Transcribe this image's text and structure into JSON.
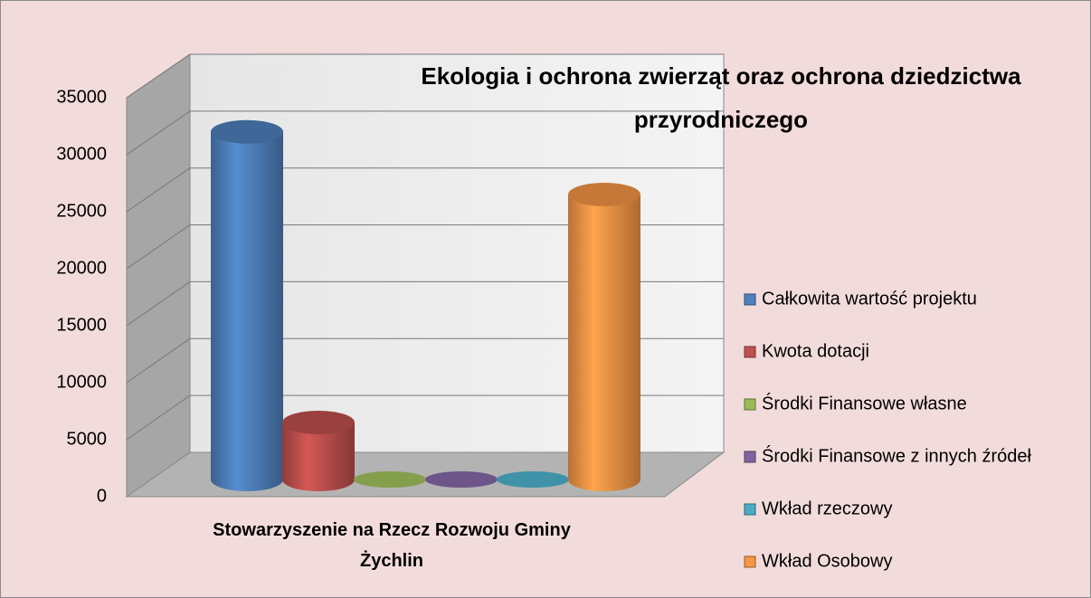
{
  "chart_data": {
    "type": "bar3d",
    "title": "Ekologia i ochrona zwierząt oraz ochrona dziedzictwa",
    "subtitle": "przyrodniczego",
    "categories": [
      "Stowarzyszenie na Rzecz Rozwoju Gminy Żychlin"
    ],
    "series": [
      {
        "name": "Całkowita wartość projektu",
        "color": "#4f81bd",
        "values": [
          30500
        ]
      },
      {
        "name": "Kwota dotacji",
        "color": "#c0504d",
        "values": [
          5000
        ]
      },
      {
        "name": "Środki  Finansowe własne",
        "color": "#9bbb59",
        "values": [
          0
        ]
      },
      {
        "name": "Środki Finansowe z innych źródeł",
        "color": "#8064a2",
        "values": [
          0
        ]
      },
      {
        "name": "Wkład rzeczowy",
        "color": "#4bacc6",
        "values": [
          0
        ]
      },
      {
        "name": "Wkład Osobowy",
        "color": "#f79646",
        "values": [
          25000
        ]
      }
    ],
    "ylim": [
      0,
      35000
    ],
    "yticks": [
      0,
      5000,
      10000,
      15000,
      20000,
      25000,
      30000,
      35000
    ],
    "grid": true,
    "legend": "right"
  }
}
